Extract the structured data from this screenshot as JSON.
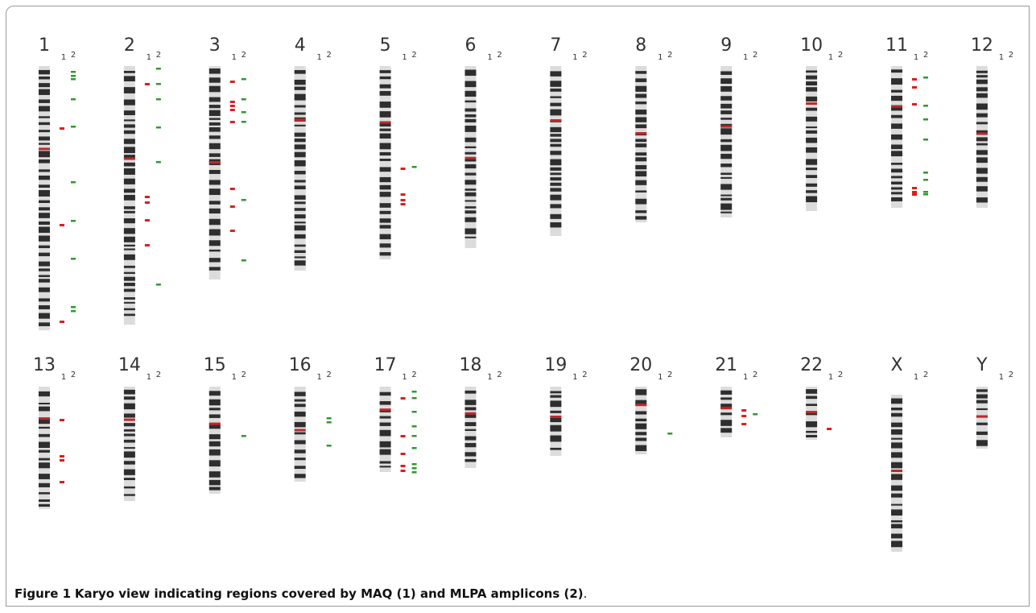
{
  "figure": {
    "chromosomes": [
      "1",
      "2",
      "3",
      "4",
      "5",
      "6",
      "7",
      "8",
      "9",
      "10",
      "11",
      "12",
      "13",
      "14",
      "15",
      "16",
      "17",
      "18",
      "19",
      "20",
      "21",
      "22",
      "X",
      "Y"
    ],
    "track_labels": [
      "1",
      "2"
    ],
    "caption": {
      "label": "Figure 1",
      "text": "Karyo view indicating regions covered by MAQ (1) and MLPA amplicons (2)",
      "end": "."
    }
  }
}
